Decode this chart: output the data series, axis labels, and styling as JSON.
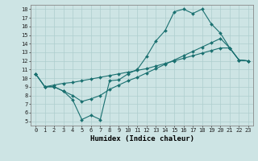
{
  "xlabel": "Humidex (Indice chaleur)",
  "xlim": [
    -0.5,
    23.5
  ],
  "ylim": [
    4.5,
    18.5
  ],
  "xticks": [
    0,
    1,
    2,
    3,
    4,
    5,
    6,
    7,
    8,
    9,
    10,
    11,
    12,
    13,
    14,
    15,
    16,
    17,
    18,
    19,
    20,
    21,
    22,
    23
  ],
  "yticks": [
    5,
    6,
    7,
    8,
    9,
    10,
    11,
    12,
    13,
    14,
    15,
    16,
    17,
    18
  ],
  "bg_color": "#cde4e4",
  "grid_color": "#aecece",
  "line_color": "#1a7070",
  "curve1_x": [
    0,
    1,
    2,
    3,
    4,
    5,
    6,
    7,
    8,
    9,
    10,
    11,
    12,
    13,
    14,
    15,
    16,
    17,
    18,
    19,
    20,
    21,
    22,
    23
  ],
  "curve1_y": [
    10.5,
    9.0,
    9.0,
    8.5,
    7.5,
    5.2,
    5.7,
    5.2,
    9.7,
    9.8,
    10.5,
    11.0,
    12.5,
    14.3,
    15.5,
    17.7,
    18.0,
    17.5,
    18.0,
    16.3,
    15.2,
    13.5,
    12.1,
    12.0
  ],
  "curve2_x": [
    0,
    1,
    2,
    3,
    4,
    5,
    6,
    7,
    8,
    9,
    10,
    11,
    12,
    13,
    14,
    15,
    16,
    17,
    18,
    19,
    20,
    21,
    22,
    23
  ],
  "curve2_y": [
    10.5,
    9.0,
    9.2,
    9.4,
    9.5,
    9.7,
    9.9,
    10.1,
    10.3,
    10.5,
    10.7,
    10.9,
    11.1,
    11.4,
    11.7,
    12.0,
    12.3,
    12.6,
    12.9,
    13.2,
    13.5,
    13.5,
    12.1,
    12.0
  ],
  "curve3_x": [
    0,
    1,
    2,
    3,
    4,
    5,
    6,
    7,
    8,
    9,
    10,
    11,
    12,
    13,
    14,
    15,
    16,
    17,
    18,
    19,
    20,
    21,
    22,
    23
  ],
  "curve3_y": [
    10.5,
    9.0,
    9.0,
    8.5,
    8.0,
    7.3,
    7.6,
    8.0,
    8.7,
    9.2,
    9.7,
    10.1,
    10.6,
    11.1,
    11.6,
    12.1,
    12.6,
    13.1,
    13.6,
    14.1,
    14.6,
    13.5,
    12.1,
    12.0
  ]
}
